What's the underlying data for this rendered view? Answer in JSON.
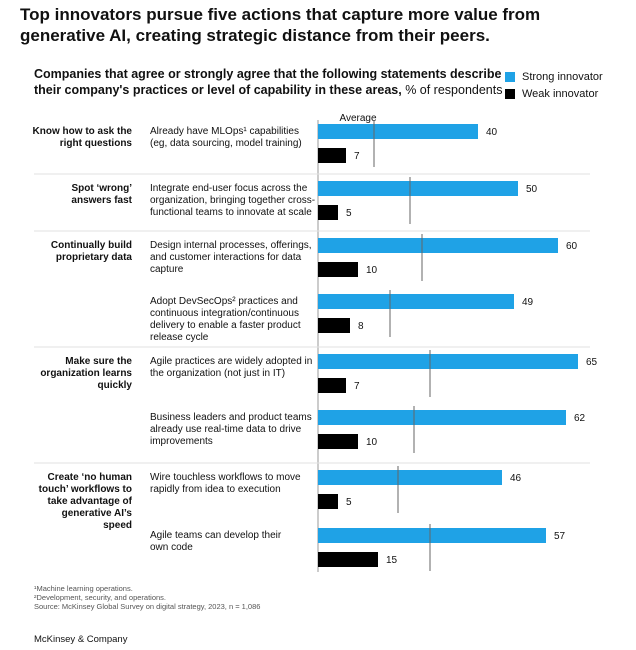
{
  "title": "Top innovators pursue five actions that capture more value from generative AI, creating strategic distance from their peers.",
  "subtitle_bold": "Companies that agree or strongly agree that the following statements describe their company's practices or level of capability in these areas,",
  "subtitle_rest": " % of respondents",
  "average_label": "Average",
  "colors": {
    "strong": "#1fa2e6",
    "weak": "#000000",
    "average_line": "#666666"
  },
  "footnotes": [
    "¹Machine learning operations.",
    "²Development, security, and operations.",
    " Source: McKinsey Global Survey on digital strategy, 2023, n = 1,086"
  ],
  "brand": "McKinsey & Company",
  "chart_data": {
    "type": "bar",
    "orientation": "horizontal",
    "series": [
      {
        "name": "Strong innovator",
        "values": [
          40,
          50,
          60,
          49,
          65,
          62,
          46,
          57
        ]
      },
      {
        "name": "Weak innovator",
        "values": [
          7,
          5,
          10,
          8,
          7,
          10,
          5,
          15
        ]
      }
    ],
    "average": [
      14,
      23,
      26,
      18,
      28,
      24,
      20,
      28
    ],
    "categories": [
      [
        "Already have MLOps¹ capabilities",
        "(eg, data sourcing, model training)"
      ],
      [
        "Integrate end-user focus across the",
        "organization, bringing together cross-",
        "functional teams to innovate at scale"
      ],
      [
        "Design internal processes, offerings,",
        "and customer interactions for data",
        "capture"
      ],
      [
        "Adopt DevSecOps² practices and",
        "continuous integration/continuous",
        "delivery to enable a faster product",
        "release cycle"
      ],
      [
        "Agile practices are widely adopted in",
        "the organization (not just in IT)"
      ],
      [
        "Business leaders and product teams",
        "already use real-time data to drive",
        "improvements"
      ],
      [
        "Wire touchless workflows to move",
        "rapidly from idea to execution"
      ],
      [
        "Agile teams can develop their",
        "own code"
      ]
    ],
    "groups": [
      {
        "label": [
          "Know how to ask  the",
          "right questions"
        ],
        "rows": [
          0
        ]
      },
      {
        "label": [
          "Spot ‘wrong’",
          "answers fast"
        ],
        "rows": [
          1
        ]
      },
      {
        "label": [
          "Continually build",
          "proprietary data"
        ],
        "rows": [
          2,
          3
        ]
      },
      {
        "label": [
          "Make sure the",
          "organization learns",
          "quickly"
        ],
        "rows": [
          4,
          5
        ]
      },
      {
        "label": [
          "Create ‘no human",
          "touch’ workflows to",
          "take advantage of",
          "generative AI’s",
          "speed"
        ],
        "rows": [
          6,
          7
        ]
      }
    ],
    "xlim": [
      0,
      70
    ],
    "legend": "top-right"
  }
}
